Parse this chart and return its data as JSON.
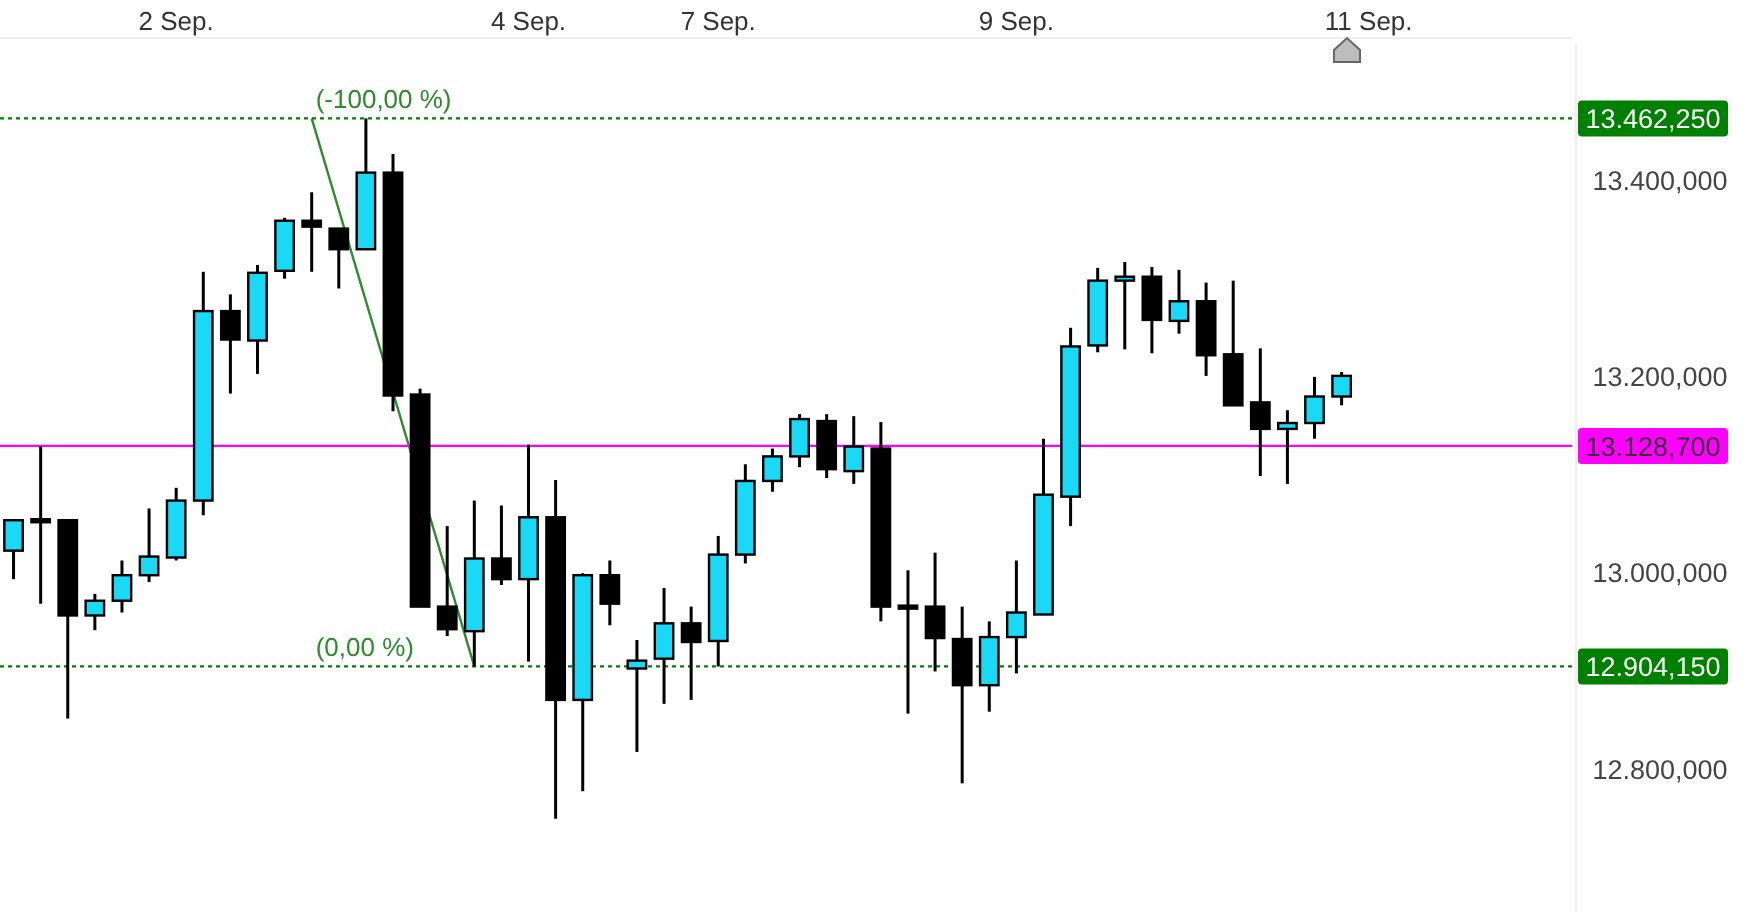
{
  "chart_data": {
    "type": "candlestick",
    "categories": [
      null,
      null,
      null,
      null,
      null,
      null,
      "2 Sep.",
      null,
      null,
      null,
      null,
      null,
      null,
      null,
      null,
      null,
      null,
      null,
      null,
      "4 Sep.",
      null,
      null,
      null,
      null,
      null,
      null,
      "7 Sep.",
      null,
      null,
      null,
      null,
      null,
      null,
      null,
      null,
      null,
      null,
      "9 Sep.",
      null,
      null,
      null,
      null,
      null,
      null,
      null,
      null,
      null,
      null,
      null,
      null,
      "11 Sep.",
      null,
      null,
      null,
      null,
      null,
      null,
      null
    ],
    "ohlc": [
      [
        13022,
        13054,
        12993,
        13053
      ],
      [
        13054,
        13128,
        12968,
        13052
      ],
      [
        13053,
        13053,
        12851,
        12956
      ],
      [
        12956,
        12978,
        12941,
        12971
      ],
      [
        12971,
        13012,
        12959,
        12997
      ],
      [
        12997,
        13065,
        12990,
        13016
      ],
      [
        13015,
        13086,
        13012,
        13073
      ],
      [
        13073,
        13306,
        13058,
        13266
      ],
      [
        13266,
        13283,
        13182,
        13237
      ],
      [
        13236,
        13313,
        13202,
        13305
      ],
      [
        13307,
        13361,
        13299,
        13358
      ],
      [
        13358,
        13387,
        13306,
        13352
      ],
      [
        13350,
        13350,
        13289,
        13329
      ],
      [
        13329,
        13462.25,
        13329,
        13407
      ],
      [
        13407,
        13426,
        13164,
        13180
      ],
      [
        13181,
        13187,
        12965,
        12965
      ],
      [
        12965,
        13047,
        12935,
        12942
      ],
      [
        12940,
        13073,
        12904.15,
        13014
      ],
      [
        13014,
        13068,
        12987,
        12993
      ],
      [
        12993,
        13130,
        12909,
        13056
      ],
      [
        13056,
        13094,
        12749,
        12870
      ],
      [
        12870,
        12999,
        12777,
        12997
      ],
      [
        12997,
        13012,
        12946,
        12968
      ],
      [
        12902,
        12931,
        12817,
        12910
      ],
      [
        12912,
        12984,
        12866,
        12948
      ],
      [
        12948,
        12965,
        12870,
        12929
      ],
      [
        12930,
        13037,
        12904,
        13018
      ],
      [
        13018,
        13110,
        13009,
        13093
      ],
      [
        13093,
        13126,
        13082,
        13118
      ],
      [
        13118,
        13161,
        13107,
        13156
      ],
      [
        13154,
        13161,
        13096,
        13105
      ],
      [
        13103,
        13159,
        13090,
        13128
      ],
      [
        13126,
        13153,
        12950,
        12965
      ],
      [
        12966,
        13002,
        12856,
        12964
      ],
      [
        12965,
        13020,
        12899,
        12933
      ],
      [
        12932,
        12965,
        12785,
        12885
      ],
      [
        12885,
        12950,
        12858,
        12934
      ],
      [
        12934,
        13012,
        12897,
        12959
      ],
      [
        12957,
        13136,
        12957,
        13079
      ],
      [
        13077,
        13249,
        13047,
        13230
      ],
      [
        13231,
        13310,
        13224,
        13297
      ],
      [
        13297,
        13316,
        13227,
        13301
      ],
      [
        13301,
        13311,
        13223,
        13257
      ],
      [
        13256,
        13308,
        13243,
        13276
      ],
      [
        13276,
        13295,
        13200,
        13221
      ],
      [
        13222,
        13297,
        13170,
        13170
      ],
      [
        13173,
        13228,
        13098,
        13146
      ],
      [
        13146,
        13165,
        13090,
        13152
      ],
      [
        13152,
        13199,
        13136,
        13179
      ],
      [
        13179,
        13204,
        13170,
        13200
      ],
      null,
      null,
      null,
      null,
      null,
      null,
      null,
      null
    ],
    "colors": [
      "#19d9f7",
      "#000000",
      "#000000",
      "#19d9f7",
      "#19d9f7",
      "#19d9f7",
      "#19d9f7",
      "#19d9f7",
      "#000000",
      "#19d9f7",
      "#19d9f7",
      "#000000",
      "#000000",
      "#19d9f7",
      "#000000",
      "#000000",
      "#000000",
      "#19d9f7",
      "#000000",
      "#19d9f7",
      "#000000",
      "#19d9f7",
      "#000000",
      "#19d9f7",
      "#19d9f7",
      "#000000",
      "#19d9f7",
      "#19d9f7",
      "#19d9f7",
      "#19d9f7",
      "#000000",
      "#19d9f7",
      "#000000",
      "#000000",
      "#000000",
      "#000000",
      "#19d9f7",
      "#19d9f7",
      "#19d9f7",
      "#19d9f7",
      "#19d9f7",
      "#19d9f7",
      "#000000",
      "#19d9f7",
      "#000000",
      "#000000",
      "#000000",
      "#19d9f7",
      "#19d9f7",
      "#19d9f7",
      null,
      null,
      null,
      null,
      null,
      null,
      null,
      null
    ],
    "series": [
      {
        "type": "line",
        "values": [
          null,
          null,
          null,
          null,
          null,
          null,
          null,
          null,
          null,
          null,
          null,
          13462.25,
          null,
          null,
          null,
          null,
          null,
          12904.15,
          null,
          null,
          null,
          null,
          null,
          null,
          null,
          null,
          null,
          null,
          null,
          null,
          null,
          null,
          null,
          null,
          null,
          null,
          null,
          null,
          null,
          null,
          null,
          null,
          null,
          null,
          null,
          null,
          null,
          null,
          null,
          null,
          null,
          null,
          null,
          null,
          null,
          null,
          null,
          null
        ],
        "color": "#2e8b2e"
      }
    ],
    "ylim": [
      12654,
      13538
    ],
    "yticks": [
      {
        "value": 12800,
        "label": "12.800,000"
      },
      {
        "value": 13000,
        "label": "13.000,000"
      },
      {
        "value": 13200,
        "label": "13.200,000"
      },
      {
        "value": 13400,
        "label": "13.400,000"
      }
    ],
    "ref_lines": [
      {
        "axis": "y",
        "value": 13462.25,
        "label": "13.462,250",
        "color": "#008000",
        "line_style": "dotted"
      },
      {
        "axis": "y",
        "value": 12904.15,
        "label": "12.904,150",
        "color": "#008000",
        "line_style": "dotted"
      },
      {
        "axis": "y",
        "value": 13128.7,
        "label": "13.128,700",
        "color": "#ff00ff",
        "line_style": "solid"
      }
    ],
    "annotations": [
      {
        "text": "(-100,00 %)",
        "y": 13462.25
      },
      {
        "text": "(0,00 %)",
        "y": 12904.15
      }
    ],
    "grid": false
  }
}
